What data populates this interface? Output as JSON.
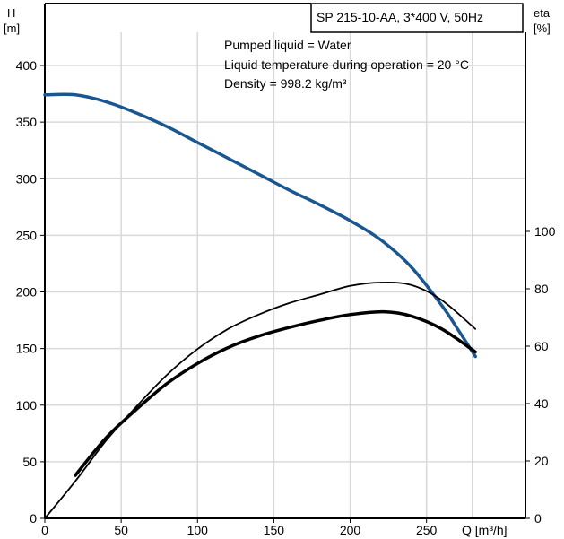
{
  "chart_data": {
    "type": "line",
    "title": "SP 215-10-AA, 3*400 V, 50Hz",
    "annotations": [
      "Pumped liquid = Water",
      "Liquid temperature during operation = 20 °C",
      "Density = 998.2 kg/m³"
    ],
    "x_axis": {
      "label": "Q [m³/h]",
      "ticks": [
        0,
        50,
        100,
        150,
        200,
        250
      ],
      "range": [
        0,
        300
      ]
    },
    "y_axis_left": {
      "label_top": "H",
      "label_bottom": "[m]",
      "ticks": [
        0,
        50,
        100,
        150,
        200,
        250,
        300,
        350,
        400
      ],
      "range": [
        0,
        400
      ]
    },
    "y_axis_right": {
      "label_top": "eta",
      "label_bottom": "[%]",
      "ticks": [
        0,
        20,
        40,
        60,
        80,
        100
      ],
      "range": [
        0,
        125
      ]
    },
    "grid": true,
    "colors": {
      "head_curve": "#1a5690",
      "efficiency_curves": "#000000",
      "grid": "#d9d9d9"
    },
    "series": [
      {
        "axis": "left",
        "style": "thick-blue",
        "points": [
          [
            0,
            374
          ],
          [
            20,
            374
          ],
          [
            40,
            368
          ],
          [
            60,
            358
          ],
          [
            80,
            346
          ],
          [
            100,
            332
          ],
          [
            120,
            318
          ],
          [
            140,
            304
          ],
          [
            160,
            290
          ],
          [
            180,
            277
          ],
          [
            200,
            263
          ],
          [
            220,
            246
          ],
          [
            240,
            222
          ],
          [
            260,
            188
          ],
          [
            270,
            168
          ],
          [
            282,
            143
          ]
        ]
      },
      {
        "axis": "right",
        "style": "thin-black",
        "points": [
          [
            0,
            0
          ],
          [
            20,
            13
          ],
          [
            40,
            27
          ],
          [
            60,
            39
          ],
          [
            80,
            50
          ],
          [
            100,
            59
          ],
          [
            120,
            66
          ],
          [
            140,
            71
          ],
          [
            160,
            75
          ],
          [
            180,
            78
          ],
          [
            200,
            81
          ],
          [
            220,
            82.2
          ],
          [
            240,
            81.3
          ],
          [
            260,
            76
          ],
          [
            282,
            66
          ]
        ]
      },
      {
        "axis": "right",
        "style": "thick-black",
        "points": [
          [
            20,
            15
          ],
          [
            40,
            28
          ],
          [
            60,
            38
          ],
          [
            80,
            47
          ],
          [
            100,
            54
          ],
          [
            120,
            59.5
          ],
          [
            140,
            63.5
          ],
          [
            160,
            66.5
          ],
          [
            180,
            69
          ],
          [
            200,
            71
          ],
          [
            222,
            72
          ],
          [
            240,
            70.5
          ],
          [
            260,
            66
          ],
          [
            282,
            58
          ]
        ]
      }
    ]
  }
}
